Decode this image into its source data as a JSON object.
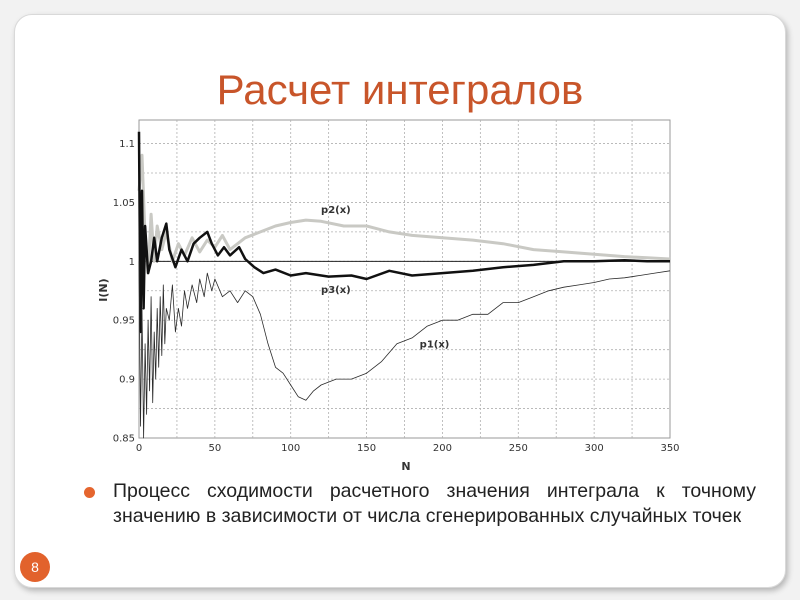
{
  "slide": {
    "title": "Расчет интегралов",
    "bullet": "Процесс сходимости расчетного значения интеграла к точному значению в зависимости от числа сгенерированных случайных точек",
    "page_number": "8",
    "colors": {
      "title": "#c8552a",
      "accent": "#e2622c"
    }
  },
  "chart_data": {
    "type": "line",
    "xlabel": "N",
    "ylabel": "I(N)",
    "xlim": [
      0,
      350
    ],
    "ylim": [
      0.85,
      1.12
    ],
    "xticks": [
      0,
      50,
      100,
      150,
      200,
      250,
      300,
      350
    ],
    "yticks": [
      0.85,
      0.9,
      0.95,
      1,
      1.05,
      1.1
    ],
    "ytick_labels": [
      "0.85",
      "0.9",
      "0.95",
      "1",
      "1.05",
      "1.1"
    ],
    "grid": true,
    "reference_line": 1,
    "series": [
      {
        "name": "p2(x)",
        "color": "#c9c9c4",
        "width": 3,
        "points": [
          [
            0,
            1.06
          ],
          [
            2,
            1.09
          ],
          [
            4,
            1.02
          ],
          [
            6,
            0.99
          ],
          [
            8,
            1.04
          ],
          [
            10,
            1.0
          ],
          [
            12,
            1.03
          ],
          [
            15,
            1.01
          ],
          [
            18,
            1.025
          ],
          [
            22,
            1.0
          ],
          [
            26,
            1.015
          ],
          [
            30,
            1.005
          ],
          [
            35,
            1.02
          ],
          [
            40,
            1.008
          ],
          [
            45,
            1.018
          ],
          [
            50,
            1.012
          ],
          [
            55,
            1.022
          ],
          [
            60,
            1.01
          ],
          [
            65,
            1.015
          ],
          [
            70,
            1.02
          ],
          [
            80,
            1.025
          ],
          [
            90,
            1.03
          ],
          [
            100,
            1.033
          ],
          [
            110,
            1.035
          ],
          [
            120,
            1.034
          ],
          [
            135,
            1.03
          ],
          [
            150,
            1.03
          ],
          [
            165,
            1.025
          ],
          [
            180,
            1.022
          ],
          [
            200,
            1.02
          ],
          [
            220,
            1.018
          ],
          [
            240,
            1.015
          ],
          [
            260,
            1.01
          ],
          [
            280,
            1.008
          ],
          [
            300,
            1.006
          ],
          [
            320,
            1.004
          ],
          [
            335,
            1.003
          ],
          [
            350,
            1.002
          ]
        ]
      },
      {
        "name": "p3(x)",
        "color": "#111111",
        "width": 2.5,
        "points": [
          [
            0,
            1.11
          ],
          [
            1,
            0.94
          ],
          [
            2,
            1.06
          ],
          [
            3,
            0.96
          ],
          [
            4,
            1.03
          ],
          [
            6,
            0.99
          ],
          [
            8,
            1.0
          ],
          [
            10,
            1.02
          ],
          [
            12,
            1.0
          ],
          [
            15,
            1.02
          ],
          [
            18,
            1.032
          ],
          [
            20,
            1.01
          ],
          [
            24,
            0.995
          ],
          [
            28,
            1.01
          ],
          [
            32,
            1.0
          ],
          [
            36,
            1.015
          ],
          [
            40,
            1.02
          ],
          [
            45,
            1.025
          ],
          [
            48,
            1.015
          ],
          [
            52,
            1.005
          ],
          [
            56,
            1.012
          ],
          [
            60,
            1.005
          ],
          [
            66,
            1.012
          ],
          [
            70,
            1.002
          ],
          [
            76,
            0.995
          ],
          [
            82,
            0.99
          ],
          [
            90,
            0.993
          ],
          [
            100,
            0.988
          ],
          [
            110,
            0.99
          ],
          [
            125,
            0.987
          ],
          [
            140,
            0.988
          ],
          [
            150,
            0.985
          ],
          [
            165,
            0.992
          ],
          [
            180,
            0.988
          ],
          [
            200,
            0.99
          ],
          [
            220,
            0.992
          ],
          [
            240,
            0.995
          ],
          [
            260,
            0.997
          ],
          [
            280,
            1.0
          ],
          [
            300,
            1.0
          ],
          [
            320,
            1.001
          ],
          [
            335,
            1.0
          ],
          [
            350,
            1.0
          ]
        ]
      },
      {
        "name": "p1(x)",
        "color": "#2a2a2a",
        "width": 0.8,
        "points": [
          [
            0,
            1.0
          ],
          [
            1,
            0.86
          ],
          [
            2,
            0.96
          ],
          [
            3,
            0.85
          ],
          [
            4,
            0.93
          ],
          [
            5,
            0.87
          ],
          [
            6,
            0.95
          ],
          [
            7,
            0.89
          ],
          [
            8,
            0.97
          ],
          [
            9,
            0.88
          ],
          [
            10,
            0.94
          ],
          [
            11,
            0.9
          ],
          [
            12,
            0.96
          ],
          [
            13,
            0.91
          ],
          [
            14,
            0.97
          ],
          [
            15,
            0.92
          ],
          [
            16,
            0.98
          ],
          [
            17,
            0.93
          ],
          [
            18,
            0.96
          ],
          [
            20,
            0.95
          ],
          [
            22,
            0.98
          ],
          [
            24,
            0.94
          ],
          [
            26,
            0.96
          ],
          [
            28,
            0.945
          ],
          [
            30,
            0.975
          ],
          [
            32,
            0.96
          ],
          [
            35,
            0.98
          ],
          [
            38,
            0.965
          ],
          [
            40,
            0.985
          ],
          [
            43,
            0.97
          ],
          [
            45,
            0.99
          ],
          [
            48,
            0.975
          ],
          [
            50,
            0.985
          ],
          [
            55,
            0.97
          ],
          [
            60,
            0.975
          ],
          [
            65,
            0.965
          ],
          [
            70,
            0.975
          ],
          [
            75,
            0.97
          ],
          [
            80,
            0.955
          ],
          [
            85,
            0.93
          ],
          [
            90,
            0.91
          ],
          [
            95,
            0.905
          ],
          [
            100,
            0.895
          ],
          [
            105,
            0.885
          ],
          [
            110,
            0.882
          ],
          [
            115,
            0.89
          ],
          [
            120,
            0.895
          ],
          [
            130,
            0.9
          ],
          [
            140,
            0.9
          ],
          [
            150,
            0.905
          ],
          [
            160,
            0.915
          ],
          [
            170,
            0.93
          ],
          [
            180,
            0.935
          ],
          [
            190,
            0.945
          ],
          [
            200,
            0.95
          ],
          [
            210,
            0.95
          ],
          [
            220,
            0.955
          ],
          [
            230,
            0.955
          ],
          [
            240,
            0.965
          ],
          [
            250,
            0.965
          ],
          [
            260,
            0.97
          ],
          [
            270,
            0.975
          ],
          [
            280,
            0.978
          ],
          [
            290,
            0.98
          ],
          [
            300,
            0.982
          ],
          [
            310,
            0.985
          ],
          [
            320,
            0.986
          ],
          [
            330,
            0.988
          ],
          [
            340,
            0.99
          ],
          [
            350,
            0.992
          ]
        ]
      }
    ],
    "series_labels": [
      {
        "name": "p2(x)",
        "x": 120,
        "y": 1.041
      },
      {
        "name": "p3(x)",
        "x": 120,
        "y": 0.973
      },
      {
        "name": "p1(x)",
        "x": 185,
        "y": 0.927
      }
    ]
  }
}
